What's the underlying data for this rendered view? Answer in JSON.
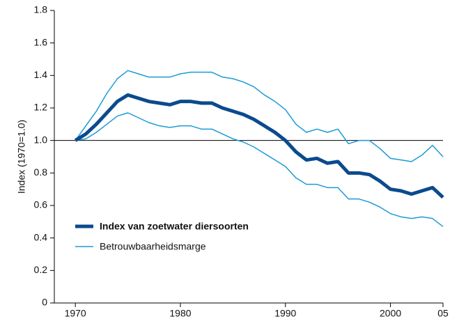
{
  "chart_data": {
    "type": "line",
    "ylabel": "Index (1970=1.0)",
    "x": [
      1970,
      1971,
      1972,
      1973,
      1974,
      1975,
      1976,
      1977,
      1978,
      1979,
      1980,
      1981,
      1982,
      1983,
      1984,
      1985,
      1986,
      1987,
      1988,
      1989,
      1990,
      1991,
      1992,
      1993,
      1994,
      1995,
      1996,
      1997,
      1998,
      1999,
      2000,
      2001,
      2002,
      2003,
      2004,
      2005
    ],
    "series": [
      {
        "name": "Index van zoetwater diersoorten",
        "color": "#0b4a8e",
        "values": [
          1.0,
          1.04,
          1.1,
          1.17,
          1.24,
          1.28,
          1.26,
          1.24,
          1.23,
          1.22,
          1.24,
          1.24,
          1.23,
          1.23,
          1.2,
          1.18,
          1.16,
          1.13,
          1.09,
          1.05,
          1.0,
          0.93,
          0.88,
          0.89,
          0.86,
          0.87,
          0.8,
          0.8,
          0.79,
          0.75,
          0.7,
          0.69,
          0.67,
          0.69,
          0.71,
          0.65
        ]
      },
      {
        "name": "Betrouwbaarheidsmarge",
        "color": "#1b9ad6",
        "upper": [
          1.0,
          1.09,
          1.18,
          1.29,
          1.38,
          1.43,
          1.41,
          1.39,
          1.39,
          1.39,
          1.41,
          1.42,
          1.42,
          1.42,
          1.39,
          1.38,
          1.36,
          1.33,
          1.28,
          1.24,
          1.19,
          1.1,
          1.05,
          1.07,
          1.05,
          1.07,
          0.98,
          1.0,
          1.0,
          0.95,
          0.89,
          0.88,
          0.87,
          0.91,
          0.97,
          0.9
        ],
        "lower": [
          1.0,
          1.01,
          1.05,
          1.1,
          1.15,
          1.17,
          1.14,
          1.11,
          1.09,
          1.08,
          1.09,
          1.09,
          1.07,
          1.07,
          1.04,
          1.01,
          0.99,
          0.96,
          0.92,
          0.88,
          0.84,
          0.77,
          0.73,
          0.73,
          0.71,
          0.71,
          0.64,
          0.64,
          0.62,
          0.59,
          0.55,
          0.53,
          0.52,
          0.53,
          0.52,
          0.47
        ]
      }
    ],
    "reference_line": 1,
    "xlim": [
      1968,
      2005
    ],
    "xticks": [
      1970,
      1980,
      1990,
      2000,
      {
        "value": 2005,
        "label": "05"
      }
    ],
    "ylim": [
      0,
      1.8
    ],
    "yticks": [
      0,
      0.2,
      0.4,
      0.6,
      0.8,
      {
        "value": 1,
        "label": "1.0"
      },
      1.2,
      1.4,
      1.6,
      1.8
    ]
  }
}
